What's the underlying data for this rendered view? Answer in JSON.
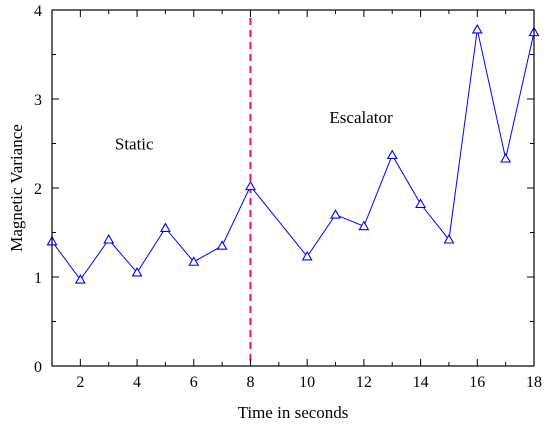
{
  "chart_data": {
    "type": "line",
    "title": "",
    "xlabel": "Time in seconds",
    "ylabel": "Magnetic Variance",
    "xlim": [
      1,
      18
    ],
    "ylim": [
      0,
      4
    ],
    "xticks": [
      2,
      4,
      6,
      8,
      10,
      12,
      14,
      16,
      18
    ],
    "yticks": [
      0,
      1,
      2,
      3,
      4
    ],
    "grid": false,
    "series": [
      {
        "x": [
          1,
          2,
          3,
          4,
          5,
          6,
          7,
          8,
          10,
          11,
          12,
          13,
          14,
          15,
          16,
          17,
          18
        ],
        "y": [
          1.4,
          0.97,
          1.42,
          1.05,
          1.55,
          1.17,
          1.35,
          2.02,
          1.23,
          1.7,
          1.57,
          2.37,
          1.82,
          1.42,
          3.78,
          2.33,
          3.75
        ],
        "color": "#0000ff",
        "marker": "triangle"
      }
    ],
    "vline": {
      "x": 8,
      "color": "#ee1166",
      "style": "dashed"
    },
    "annotations": [
      {
        "text": "Static",
        "x": 3.9,
        "y": 2.5
      },
      {
        "text": "Escalator",
        "x": 11.9,
        "y": 2.8
      }
    ]
  }
}
